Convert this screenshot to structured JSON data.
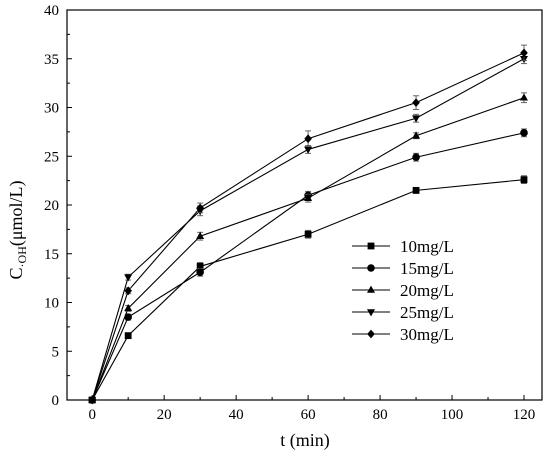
{
  "chart_data": {
    "type": "line",
    "xlabel": "t (min)",
    "ylabel": {
      "main": "C",
      "sub": "·OH",
      "rest": "(μmol/L)"
    },
    "xlim": [
      -7,
      125
    ],
    "ylim": [
      0,
      40
    ],
    "xticks": [
      0,
      20,
      40,
      60,
      80,
      100,
      120
    ],
    "yticks": [
      0,
      5,
      10,
      15,
      20,
      25,
      30,
      35,
      40
    ],
    "x": [
      0,
      10,
      30,
      60,
      90,
      120
    ],
    "grid": false,
    "legend_position": "bottom-right",
    "series": [
      {
        "name": "10mg/L",
        "marker": "square",
        "values": [
          0,
          6.6,
          13.7,
          17.0,
          21.5,
          22.6
        ],
        "errors": [
          0,
          0.2,
          0.4,
          0.4,
          0.3,
          0.4
        ]
      },
      {
        "name": "15mg/L",
        "marker": "circle",
        "values": [
          0,
          8.5,
          13.1,
          21.0,
          24.9,
          27.4
        ],
        "errors": [
          0,
          0.3,
          0.4,
          0.4,
          0.4,
          0.4
        ]
      },
      {
        "name": "20mg/L",
        "marker": "triangle-up",
        "values": [
          0,
          9.4,
          16.8,
          20.7,
          27.1,
          31.0
        ],
        "errors": [
          0,
          0.3,
          0.4,
          0.4,
          0.3,
          0.5
        ]
      },
      {
        "name": "25mg/L",
        "marker": "triangle-down",
        "values": [
          0,
          12.6,
          19.4,
          25.7,
          28.9,
          35.0
        ],
        "errors": [
          0,
          0.3,
          0.5,
          0.4,
          0.4,
          0.5
        ]
      },
      {
        "name": "30mg/L",
        "marker": "diamond",
        "values": [
          0,
          11.2,
          19.7,
          26.8,
          30.5,
          35.6
        ],
        "errors": [
          0,
          0.3,
          0.5,
          0.8,
          0.7,
          0.8
        ]
      }
    ]
  }
}
